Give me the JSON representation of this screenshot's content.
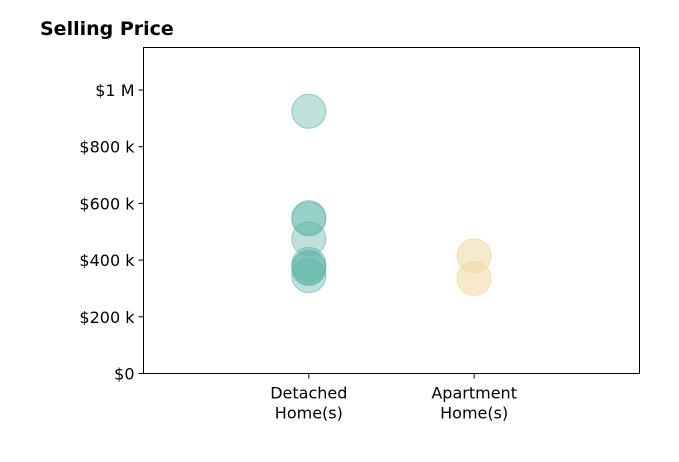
{
  "chart_data": {
    "type": "scatter",
    "title": "Selling Price",
    "xlabel": "",
    "ylabel": "",
    "categories": [
      [
        "Detached",
        "Home(s)"
      ],
      [
        "Apartment",
        "Home(s)"
      ]
    ],
    "xlim": [
      -1,
      2
    ],
    "ylim": [
      0,
      1150000
    ],
    "y_ticks": [
      {
        "value": 0,
        "label": "$0"
      },
      {
        "value": 200000,
        "label": "$200 k"
      },
      {
        "value": 400000,
        "label": "$400 k"
      },
      {
        "value": 600000,
        "label": "$600 k"
      },
      {
        "value": 800000,
        "label": "$800 k"
      },
      {
        "value": 1000000,
        "label": "$1 M"
      }
    ],
    "grid": false,
    "legend": "none",
    "series": [
      {
        "category_index": 0,
        "color": "#5fb3a8",
        "opacity": 0.4,
        "values": [
          925000,
          550000,
          545000,
          475000,
          385000,
          375000,
          370000,
          345000
        ]
      },
      {
        "category_index": 1,
        "color": "#f0d69a",
        "opacity": 0.5,
        "values": [
          415000,
          335000
        ]
      }
    ]
  }
}
